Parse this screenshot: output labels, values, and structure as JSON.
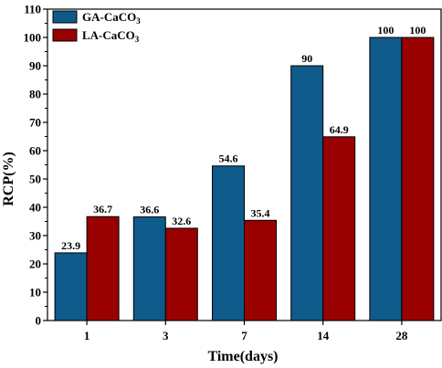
{
  "chart_data": {
    "type": "bar",
    "xlabel": "Time(days)",
    "ylabel": "RCP(%)",
    "categories": [
      "1",
      "3",
      "7",
      "14",
      "28"
    ],
    "ylim": [
      0,
      110
    ],
    "yticks": [
      0,
      10,
      20,
      30,
      40,
      50,
      60,
      70,
      80,
      90,
      100,
      110
    ],
    "grid": false,
    "legend": {
      "position": "top-left",
      "entries": [
        {
          "main": "GA-CaCO",
          "sub": "3"
        },
        {
          "main": "LA-CaCO",
          "sub": "3"
        }
      ]
    },
    "series": [
      {
        "name": "GA-CaCO3",
        "color": "#0e5a8a",
        "values": [
          23.9,
          36.6,
          54.6,
          90,
          100
        ],
        "labels": [
          "23.9",
          "36.6",
          "54.6",
          "90",
          "100"
        ]
      },
      {
        "name": "LA-CaCO3",
        "color": "#990000",
        "values": [
          36.7,
          32.6,
          35.4,
          64.9,
          100
        ],
        "labels": [
          "36.7",
          "32.6",
          "35.4",
          "64.9",
          "100"
        ]
      }
    ]
  }
}
